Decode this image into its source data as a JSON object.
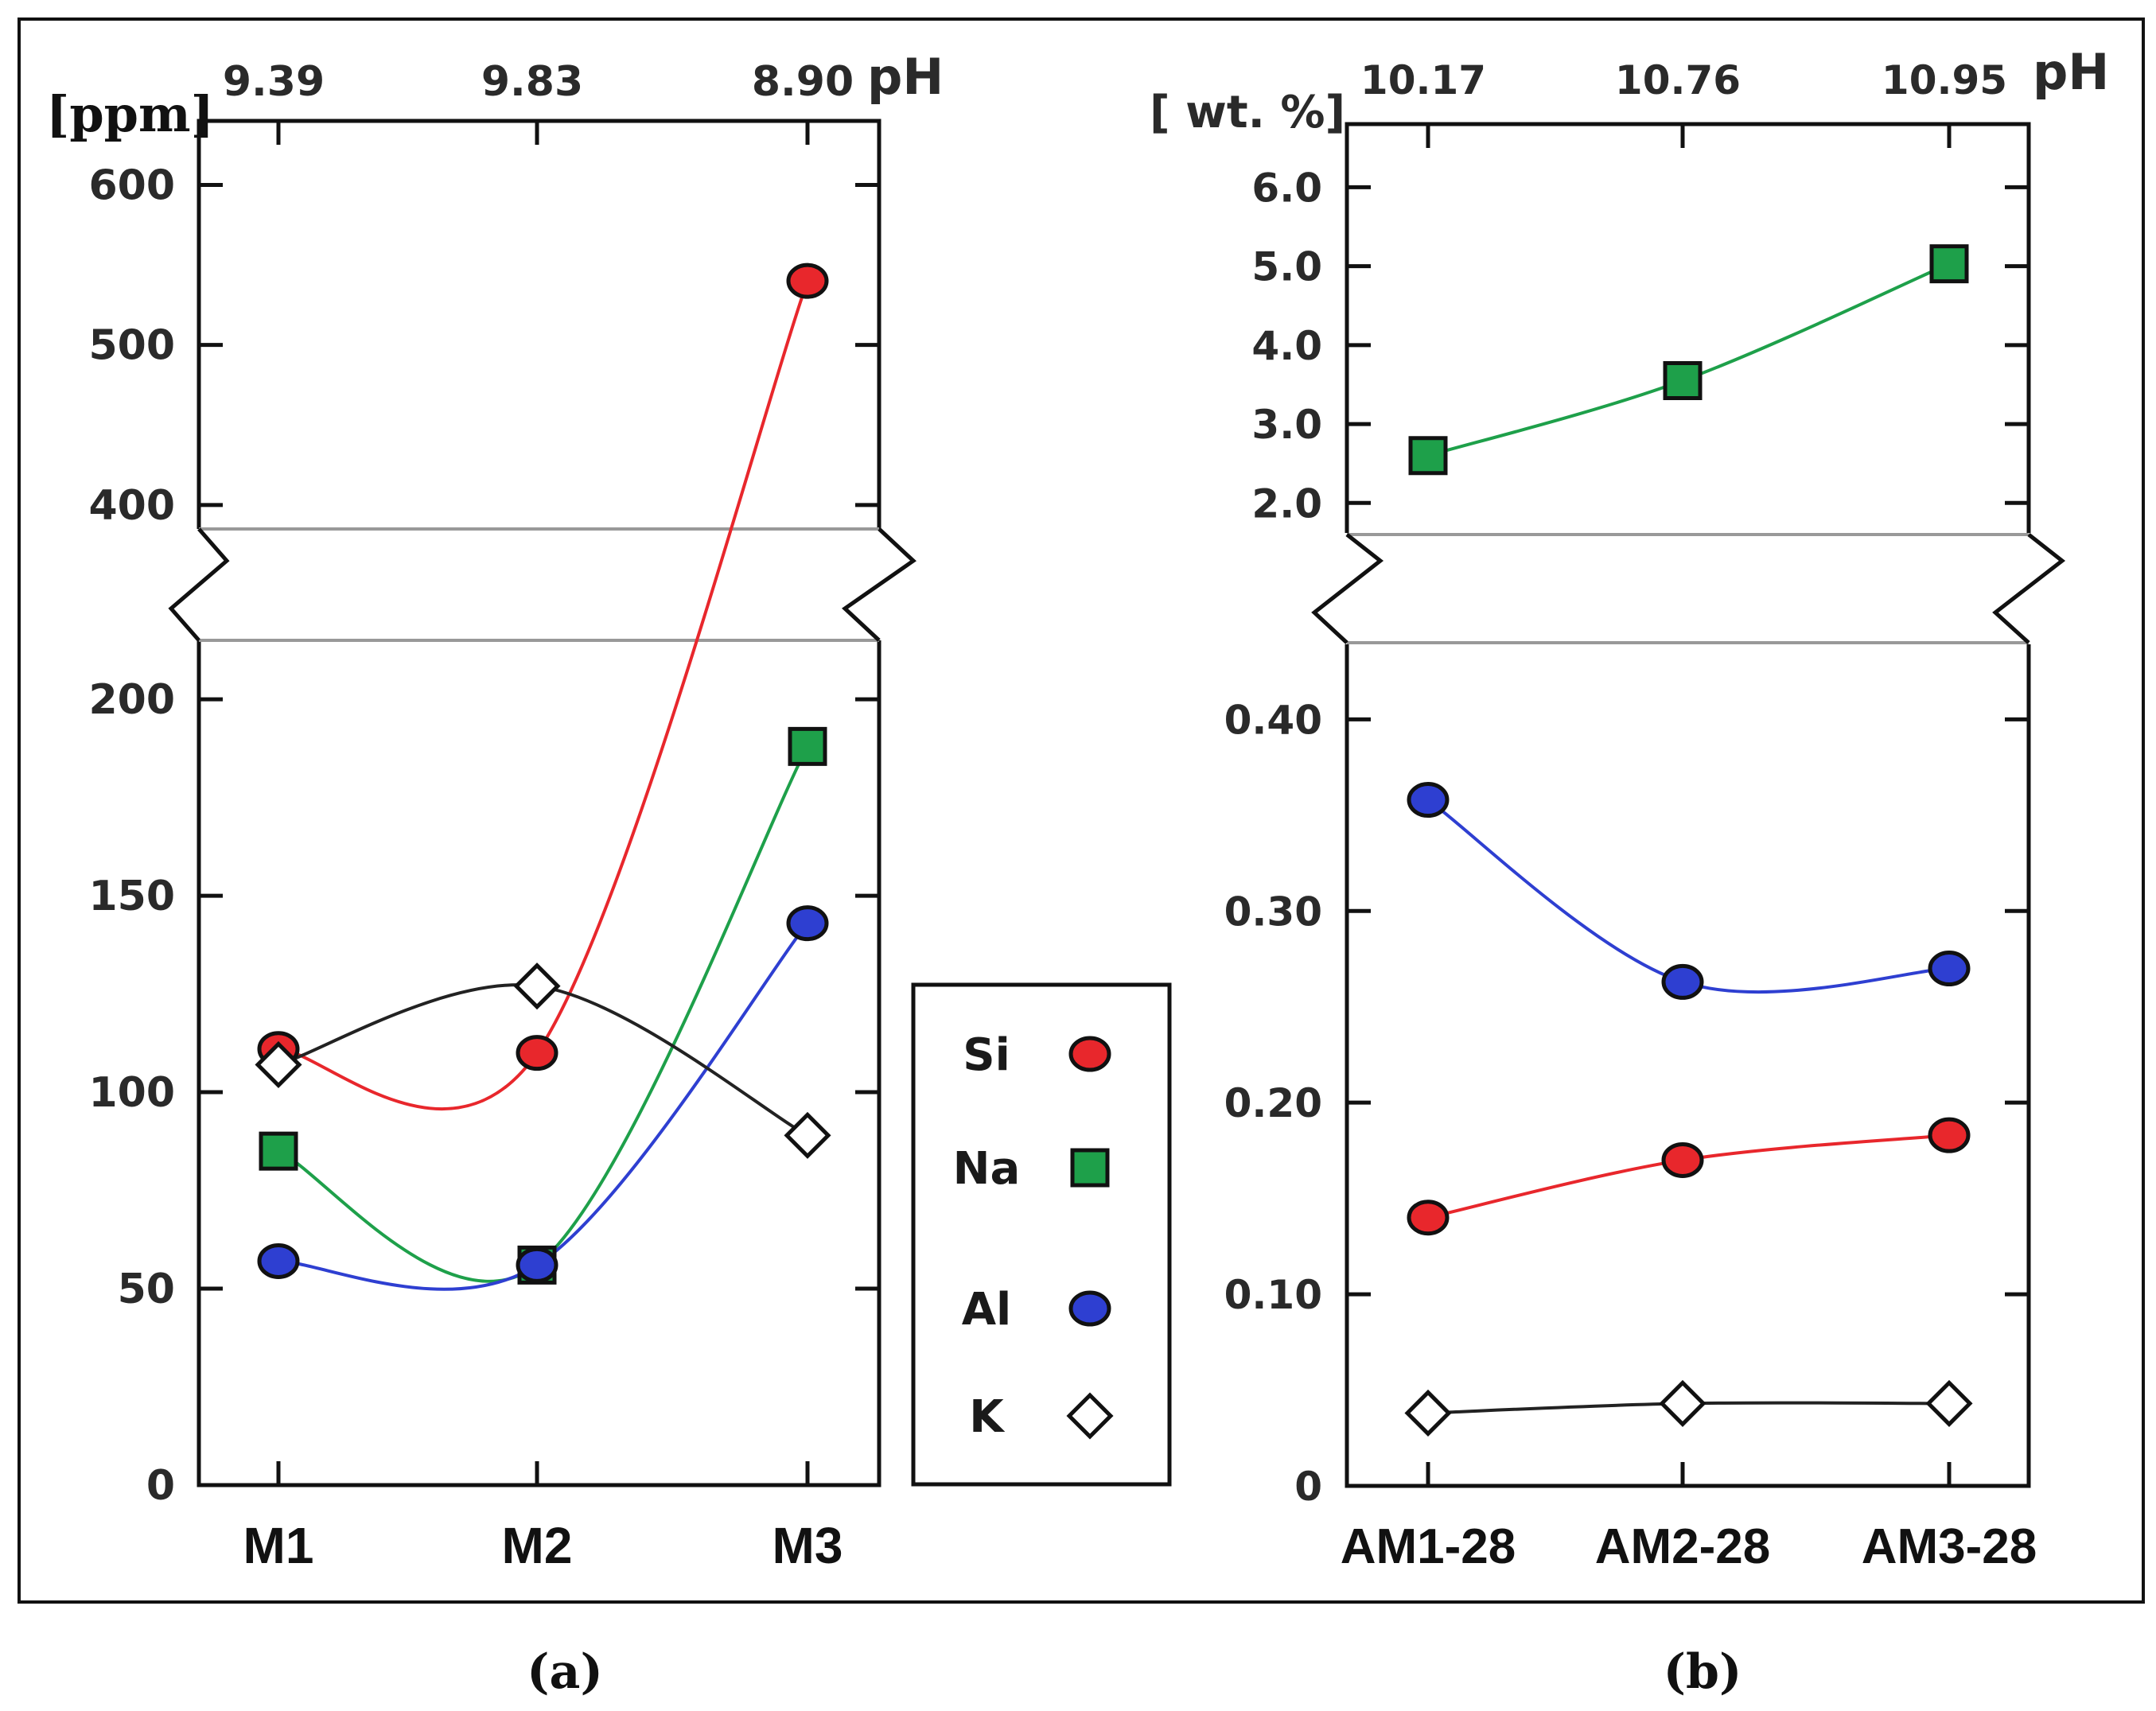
{
  "chart_data": [
    {
      "type": "line",
      "panel_label": "(a)",
      "unit_label": "[ppm]",
      "top_axis_label": "pH",
      "top_axis_values": [
        "9.39",
        "9.83",
        "8.90"
      ],
      "categories": [
        "M1",
        "M2",
        "M3"
      ],
      "axis_break": {
        "lower_max": 215,
        "upper_min": 385
      },
      "lower_ticks": [
        "0",
        "50",
        "100",
        "150",
        "200"
      ],
      "upper_ticks": [
        "400",
        "500",
        "600"
      ],
      "ylim_lower": [
        0,
        215
      ],
      "ylim_upper": [
        385,
        640
      ],
      "series": [
        {
          "name": "Si",
          "marker": "circle",
          "color": "#e8272c",
          "values": [
            111,
            110,
            540
          ]
        },
        {
          "name": "Na",
          "marker": "square",
          "color": "#1ea04a",
          "values": [
            85,
            56,
            188
          ]
        },
        {
          "name": "Al",
          "marker": "circle",
          "color": "#2e3fd1",
          "values": [
            57,
            56,
            143
          ]
        },
        {
          "name": "K",
          "marker": "diamond",
          "color": "#ffffff",
          "values": [
            107,
            127,
            89
          ]
        }
      ]
    },
    {
      "type": "line",
      "panel_label": "(b)",
      "unit_label": "[ wt. %]",
      "top_axis_label": "pH",
      "top_axis_values": [
        "10.17",
        "10.76",
        "10.95"
      ],
      "categories": [
        "AM1-28",
        "AM2-28",
        "AM3-28"
      ],
      "axis_break": {
        "lower_max": 0.44,
        "upper_min": 1.6
      },
      "lower_ticks": [
        "0",
        "0.10",
        "0.20",
        "0.30",
        "0.40"
      ],
      "upper_ticks": [
        "2.0",
        "3.0",
        "4.0",
        "5.0",
        "6.0"
      ],
      "ylim_lower": [
        0,
        0.44
      ],
      "ylim_upper": [
        1.6,
        6.8
      ],
      "series": [
        {
          "name": "Si",
          "marker": "circle",
          "color": "#e8272c",
          "values": [
            0.14,
            0.17,
            0.183
          ]
        },
        {
          "name": "Na",
          "marker": "square",
          "color": "#1ea04a",
          "values": [
            2.6,
            3.55,
            5.03
          ]
        },
        {
          "name": "Al",
          "marker": "circle",
          "color": "#2e3fd1",
          "values": [
            0.358,
            0.263,
            0.27
          ]
        },
        {
          "name": "K",
          "marker": "diamond",
          "color": "#ffffff",
          "values": [
            0.038,
            0.043,
            0.043
          ]
        }
      ]
    }
  ],
  "legend": {
    "items": [
      {
        "label": "Si",
        "marker": "circle",
        "color": "#e8272c"
      },
      {
        "label": "Na",
        "marker": "square",
        "color": "#1ea04a"
      },
      {
        "label": "Al",
        "marker": "circle",
        "color": "#2e3fd1"
      },
      {
        "label": "K",
        "marker": "diamond",
        "color": "#ffffff"
      }
    ]
  },
  "colors": {
    "line_K": "#222222",
    "frame": "#111111",
    "break_line": "#999999"
  }
}
